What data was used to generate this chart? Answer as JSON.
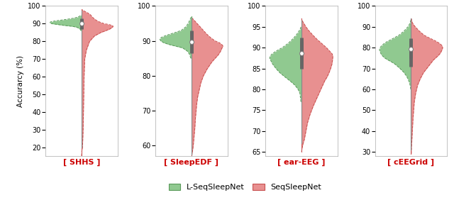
{
  "datasets": [
    {
      "name": "SHHS",
      "ylim": [
        15,
        100
      ],
      "yticks": [
        20,
        30,
        40,
        50,
        60,
        70,
        80,
        90,
        100
      ],
      "l_seq_median": 91.0,
      "l_seq_q1": 89.5,
      "l_seq_q3": 93.0,
      "l_seq_whisker_low": 88.0,
      "l_seq_whisker_high": 94.5,
      "seq_median": 89.0,
      "seq_q1": 87.0,
      "seq_q3": 92.0,
      "seq_whisker_low": 20.0,
      "seq_whisker_high": 97.5,
      "l_seq_kde_y": [
        86,
        87,
        88,
        88.5,
        89,
        89.5,
        90,
        90.5,
        91,
        91.5,
        92,
        92.5,
        93,
        93.5,
        94,
        94.5,
        95
      ],
      "l_seq_kde_w": [
        0.02,
        0.05,
        0.15,
        0.3,
        0.55,
        0.75,
        0.95,
        1.0,
        0.98,
        0.85,
        0.65,
        0.45,
        0.28,
        0.16,
        0.08,
        0.04,
        0.01
      ],
      "seq_kde_y": [
        15,
        18,
        20,
        25,
        30,
        40,
        50,
        60,
        70,
        75,
        80,
        83,
        85,
        86,
        87,
        88,
        88.5,
        89,
        89.5,
        90,
        91,
        92,
        93,
        94,
        95,
        96,
        97,
        97.5,
        98
      ],
      "seq_kde_w": [
        0.0,
        0.01,
        0.03,
        0.04,
        0.05,
        0.06,
        0.07,
        0.08,
        0.1,
        0.15,
        0.25,
        0.4,
        0.6,
        0.75,
        0.88,
        0.96,
        0.98,
        0.95,
        0.85,
        0.7,
        0.55,
        0.45,
        0.38,
        0.32,
        0.28,
        0.2,
        0.1,
        0.05,
        0.01
      ]
    },
    {
      "name": "SleepEDF",
      "ylim": [
        57,
        100
      ],
      "yticks": [
        60,
        70,
        80,
        90,
        100
      ],
      "l_seq_median": 90.5,
      "l_seq_q1": 89.0,
      "l_seq_q3": 93.0,
      "l_seq_whisker_low": 87.0,
      "l_seq_whisker_high": 96.5,
      "seq_median": 89.0,
      "seq_q1": 86.5,
      "seq_q3": 92.5,
      "seq_whisker_low": 57.5,
      "seq_whisker_high": 96.5,
      "l_seq_kde_y": [
        85,
        86,
        87,
        88,
        88.5,
        89,
        89.5,
        90,
        90.5,
        91,
        91.5,
        92,
        92.5,
        93,
        94,
        95,
        96,
        96.5,
        97
      ],
      "l_seq_kde_w": [
        0.02,
        0.05,
        0.12,
        0.28,
        0.5,
        0.72,
        0.88,
        0.97,
        1.0,
        0.95,
        0.82,
        0.65,
        0.48,
        0.32,
        0.18,
        0.1,
        0.05,
        0.02,
        0.01
      ],
      "seq_kde_y": [
        57,
        58,
        60,
        63,
        65,
        68,
        70,
        72,
        74,
        76,
        78,
        80,
        82,
        84,
        85,
        86,
        87,
        88,
        88.5,
        89,
        89.5,
        90,
        91,
        92,
        93,
        94,
        95,
        96,
        96.5
      ],
      "seq_kde_w": [
        0.01,
        0.03,
        0.06,
        0.09,
        0.11,
        0.13,
        0.15,
        0.17,
        0.2,
        0.25,
        0.3,
        0.38,
        0.5,
        0.65,
        0.75,
        0.85,
        0.92,
        0.97,
        1.0,
        0.96,
        0.88,
        0.75,
        0.6,
        0.48,
        0.38,
        0.28,
        0.18,
        0.08,
        0.03
      ]
    },
    {
      "name": "ear-EEG",
      "ylim": [
        64,
        100
      ],
      "yticks": [
        65,
        70,
        75,
        80,
        85,
        90,
        95,
        100
      ],
      "l_seq_median": 89.0,
      "l_seq_q1": 87.5,
      "l_seq_q3": 91.5,
      "l_seq_whisker_low": 79.0,
      "l_seq_whisker_high": 94.5,
      "seq_median": 88.5,
      "seq_q1": 85.0,
      "seq_q3": 92.5,
      "seq_whisker_low": 67.0,
      "seq_whisker_high": 96.5,
      "l_seq_kde_y": [
        77,
        79,
        80,
        81,
        82,
        83,
        84,
        85,
        86,
        87,
        87.5,
        88,
        88.5,
        89,
        89.5,
        90,
        91,
        92,
        93,
        94,
        94.5,
        95
      ],
      "l_seq_kde_w": [
        0.01,
        0.04,
        0.1,
        0.2,
        0.35,
        0.52,
        0.68,
        0.8,
        0.9,
        0.97,
        1.0,
        0.98,
        0.92,
        0.83,
        0.72,
        0.6,
        0.42,
        0.28,
        0.16,
        0.07,
        0.03,
        0.01
      ],
      "seq_kde_y": [
        65,
        66,
        67,
        68,
        70,
        72,
        74,
        76,
        78,
        80,
        82,
        83,
        84,
        85,
        86,
        87,
        88,
        88.5,
        89,
        90,
        91,
        92,
        93,
        94,
        95,
        96,
        96.5,
        97
      ],
      "seq_kde_w": [
        0.01,
        0.03,
        0.06,
        0.1,
        0.15,
        0.2,
        0.28,
        0.38,
        0.5,
        0.62,
        0.74,
        0.82,
        0.88,
        0.93,
        0.97,
        0.99,
        1.0,
        0.98,
        0.92,
        0.8,
        0.65,
        0.5,
        0.37,
        0.25,
        0.15,
        0.07,
        0.03,
        0.01
      ]
    },
    {
      "name": "cEEGrid",
      "ylim": [
        28,
        100
      ],
      "yticks": [
        30,
        40,
        50,
        60,
        70,
        80,
        90,
        100
      ],
      "l_seq_median": 79.5,
      "l_seq_q1": 75.0,
      "l_seq_q3": 83.5,
      "l_seq_whisker_low": 62.0,
      "l_seq_whisker_high": 93.5,
      "seq_median": 79.0,
      "seq_q1": 71.0,
      "seq_q3": 84.5,
      "seq_whisker_low": 31.0,
      "seq_whisker_high": 94.0,
      "l_seq_kde_y": [
        60,
        62,
        64,
        66,
        68,
        70,
        72,
        73,
        74,
        75,
        76,
        77,
        78,
        79,
        80,
        81,
        82,
        83,
        84,
        85,
        86,
        88,
        90,
        91,
        92,
        93,
        93.5
      ],
      "l_seq_kde_w": [
        0.01,
        0.03,
        0.07,
        0.13,
        0.22,
        0.35,
        0.5,
        0.6,
        0.72,
        0.83,
        0.9,
        0.95,
        0.98,
        1.0,
        0.98,
        0.93,
        0.85,
        0.75,
        0.62,
        0.5,
        0.38,
        0.22,
        0.1,
        0.06,
        0.03,
        0.01,
        0.005
      ],
      "seq_kde_y": [
        29,
        31,
        34,
        37,
        40,
        43,
        46,
        50,
        54,
        58,
        62,
        65,
        68,
        70,
        72,
        74,
        75,
        76,
        77,
        78,
        79,
        80,
        81,
        82,
        83,
        84,
        85,
        86,
        88,
        90,
        91,
        92,
        93,
        94
      ],
      "seq_kde_w": [
        0.005,
        0.01,
        0.02,
        0.03,
        0.04,
        0.05,
        0.06,
        0.08,
        0.1,
        0.14,
        0.2,
        0.28,
        0.38,
        0.48,
        0.58,
        0.68,
        0.75,
        0.82,
        0.88,
        0.92,
        0.95,
        0.97,
        0.95,
        0.88,
        0.78,
        0.65,
        0.52,
        0.4,
        0.25,
        0.13,
        0.08,
        0.04,
        0.02,
        0.01
      ]
    }
  ],
  "l_seq_color": "#90c990",
  "seq_color": "#e89090",
  "l_seq_edge_color": "#5a9a5a",
  "seq_edge_color": "#c85050",
  "whisker_color": "#888888",
  "iqr_color": "#666666",
  "ylabel": "Accurarcy (%)",
  "label_color": "#cc0000",
  "legend_l_seq": "L-SeqSleepNet",
  "legend_seq": "SeqSleepNet"
}
